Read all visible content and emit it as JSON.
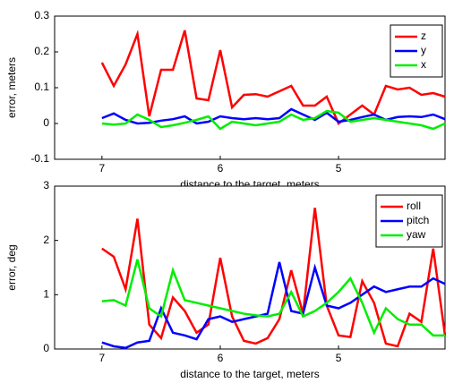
{
  "chart_data": [
    {
      "type": "line",
      "xlabel": "distance to the target, meters",
      "ylabel": "error, meters",
      "x": [
        7.0,
        6.9,
        6.8,
        6.7,
        6.6,
        6.5,
        6.4,
        6.3,
        6.2,
        6.1,
        6.0,
        5.9,
        5.8,
        5.7,
        5.6,
        5.5,
        5.4,
        5.3,
        5.2,
        5.1,
        5.0,
        4.9,
        4.8,
        4.7,
        4.6,
        4.5,
        4.4,
        4.3,
        4.2,
        4.1
      ],
      "xlim": [
        7.4,
        4.1
      ],
      "xticks": [
        7,
        6,
        5
      ],
      "ylim": [
        -0.1,
        0.3
      ],
      "yticks": [
        -0.1,
        0,
        0.1,
        0.2,
        0.3
      ],
      "legend": "upper right",
      "series": [
        {
          "name": "z",
          "color": "#ff0000",
          "values": [
            0.17,
            0.105,
            0.165,
            0.25,
            0.02,
            0.15,
            0.15,
            0.26,
            0.07,
            0.065,
            0.205,
            0.045,
            0.08,
            0.082,
            0.075,
            0.09,
            0.105,
            0.05,
            0.05,
            0.075,
            0.0,
            0.025,
            0.05,
            0.025,
            0.105,
            0.095,
            0.1,
            0.08,
            0.085,
            0.075
          ]
        },
        {
          "name": "y",
          "color": "#0000ff",
          "values": [
            0.015,
            0.028,
            0.01,
            0.0,
            0.002,
            0.008,
            0.012,
            0.02,
            0.0,
            0.005,
            0.02,
            0.015,
            0.012,
            0.015,
            0.012,
            0.015,
            0.04,
            0.025,
            0.01,
            0.03,
            0.005,
            0.01,
            0.018,
            0.025,
            0.01,
            0.018,
            0.02,
            0.018,
            0.025,
            0.012
          ]
        },
        {
          "name": "x",
          "color": "#00ee00",
          "values": [
            0.0,
            -0.003,
            0.0,
            0.025,
            0.01,
            -0.01,
            -0.005,
            0.002,
            0.01,
            0.02,
            -0.015,
            0.005,
            0.0,
            -0.005,
            0.0,
            0.005,
            0.025,
            0.01,
            0.015,
            0.035,
            0.03,
            0.005,
            0.01,
            0.015,
            0.01,
            0.005,
            0.0,
            -0.005,
            -0.015,
            0.0
          ]
        }
      ]
    },
    {
      "type": "line",
      "xlabel": "distance to the target, meters",
      "ylabel": "error, deg",
      "x": [
        7.0,
        6.9,
        6.8,
        6.7,
        6.6,
        6.5,
        6.4,
        6.3,
        6.2,
        6.1,
        6.0,
        5.9,
        5.8,
        5.7,
        5.6,
        5.5,
        5.4,
        5.3,
        5.2,
        5.1,
        5.0,
        4.9,
        4.8,
        4.7,
        4.6,
        4.5,
        4.4,
        4.3,
        4.2,
        4.1
      ],
      "xlim": [
        7.4,
        4.1
      ],
      "xticks": [
        7,
        6,
        5
      ],
      "ylim": [
        0,
        3
      ],
      "yticks": [
        0,
        1,
        2,
        3
      ],
      "legend": "upper right",
      "series": [
        {
          "name": "roll",
          "color": "#ff0000",
          "values": [
            1.85,
            1.7,
            1.1,
            2.4,
            0.45,
            0.2,
            0.95,
            0.7,
            0.3,
            0.45,
            1.68,
            0.6,
            0.15,
            0.1,
            0.2,
            0.55,
            1.45,
            0.65,
            2.6,
            0.8,
            0.25,
            0.22,
            1.25,
            0.85,
            0.1,
            0.05,
            0.65,
            0.5,
            1.85,
            0.25
          ]
        },
        {
          "name": "pitch",
          "color": "#0000ff",
          "values": [
            0.12,
            0.05,
            0.02,
            0.12,
            0.15,
            0.75,
            0.3,
            0.25,
            0.18,
            0.55,
            0.6,
            0.5,
            0.55,
            0.6,
            0.65,
            1.6,
            0.7,
            0.65,
            1.5,
            0.8,
            0.75,
            0.85,
            1.0,
            1.15,
            1.05,
            1.1,
            1.15,
            1.15,
            1.3,
            1.2
          ]
        },
        {
          "name": "yaw",
          "color": "#00ee00",
          "values": [
            0.88,
            0.9,
            0.8,
            1.65,
            0.75,
            0.6,
            1.45,
            0.9,
            0.85,
            0.8,
            0.75,
            0.7,
            0.65,
            0.62,
            0.6,
            0.65,
            1.05,
            0.6,
            0.7,
            0.85,
            1.05,
            1.3,
            0.85,
            0.3,
            0.75,
            0.55,
            0.45,
            0.45,
            0.25,
            0.25
          ]
        }
      ]
    }
  ]
}
